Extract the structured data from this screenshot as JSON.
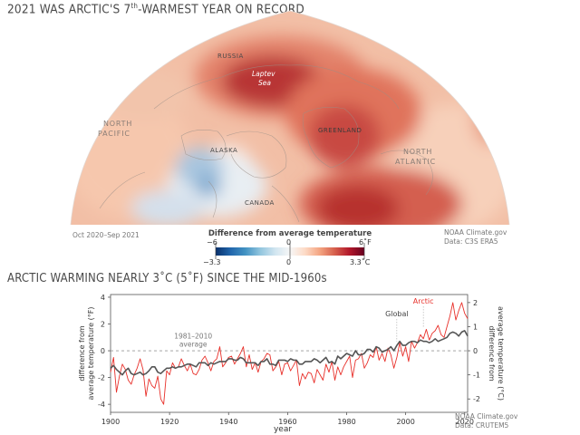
{
  "map": {
    "title": "2021 WAS ARCTIC'S 7",
    "title_sup": "th",
    "title_rest": "-WARMEST YEAR ON RECORD",
    "labels": {
      "russia": "RUSSIA",
      "laptev": "Laptev",
      "sea": "Sea",
      "greenland": "GREENLAND",
      "north_pacific_1": "NORTH",
      "north_pacific_2": "PACIFIC",
      "alaska": "ALASKA",
      "canada": "CANADA",
      "north_atlantic_1": "NORTH",
      "north_atlantic_2": "ATLANTIC"
    },
    "period": "Oct 2020–Sep 2021",
    "credit_1": "NOAA Climate.gov",
    "credit_2": "Data: C3S ERA5"
  },
  "colorbar": {
    "title": "Difference from average temperature",
    "f_min": "−6",
    "f_mid": "0",
    "f_max": "6˚F",
    "c_min": "−3.3",
    "c_mid": "0",
    "c_max": "3.3˚C",
    "colors": [
      "#08306b",
      "#2166ac",
      "#4393c3",
      "#92c5de",
      "#d1e5f0",
      "#f7f7f7",
      "#fddbc7",
      "#f4a582",
      "#d6604d",
      "#b2182b",
      "#67001f"
    ]
  },
  "chart_data": {
    "type": "line",
    "title": "ARCTIC WARMING NEARLY 3˚C (5˚F) SINCE THE MID-1960s",
    "xlabel": "year",
    "ylabel_left": "difference from average temperature (°F)",
    "ylabel_right": "difference from average temperature (°C)",
    "xlim": [
      1900,
      2021
    ],
    "ylim_f": [
      -4.6,
      4.2
    ],
    "x_ticks": [
      1900,
      1920,
      1940,
      1960,
      1980,
      2000,
      2020
    ],
    "y_ticks_f": [
      4,
      2,
      0,
      -2,
      -4
    ],
    "y_ticks_c": [
      2,
      1,
      0,
      -1,
      -2
    ],
    "baseline_label_1": "1981–2010",
    "baseline_label_2": "average",
    "series": [
      {
        "name": "Arctic",
        "color": "#e8302a",
        "x_start": 1900,
        "values_f": [
          -1.6,
          -0.5,
          -3.1,
          -1.9,
          -1.0,
          -1.4,
          -2.2,
          -2.5,
          -1.8,
          -1.3,
          -0.6,
          -1.4,
          -3.4,
          -2.1,
          -2.6,
          -2.8,
          -1.9,
          -3.6,
          -4.0,
          -1.5,
          -1.8,
          -0.9,
          -1.3,
          -1.2,
          -0.6,
          -1.1,
          -1.5,
          -1.0,
          -1.7,
          -1.8,
          -1.4,
          -0.7,
          -0.4,
          -0.9,
          -1.5,
          -0.8,
          -0.6,
          0.3,
          -1.2,
          -0.9,
          -0.5,
          -0.4,
          -1.0,
          -0.6,
          -0.2,
          0.3,
          -1.2,
          -0.3,
          -1.4,
          -0.9,
          -1.6,
          -0.8,
          -0.6,
          -0.2,
          -0.3,
          -1.5,
          -1.2,
          -0.8,
          -1.8,
          -1.0,
          -0.9,
          -1.5,
          -1.1,
          -0.7,
          -2.6,
          -1.7,
          -2.1,
          -1.6,
          -1.7,
          -2.4,
          -1.4,
          -1.8,
          -2.2,
          -1.0,
          -1.6,
          -0.8,
          -2.2,
          -1.2,
          -1.8,
          -1.2,
          -0.8,
          -0.4,
          -2.0,
          -0.7,
          -0.6,
          -0.2,
          -1.3,
          -0.9,
          -0.3,
          -0.5,
          0.3,
          -0.7,
          -0.2,
          -0.8,
          0.2,
          -0.3,
          -1.3,
          -0.5,
          0.6,
          -0.4,
          0.3,
          -0.8,
          0.7,
          0.2,
          0.6,
          1.2,
          0.9,
          1.6,
          0.8,
          1.3,
          1.5,
          1.9,
          1.2,
          1.0,
          1.8,
          2.6,
          3.6,
          2.3,
          3.0,
          3.6,
          2.8,
          2.4
        ]
      },
      {
        "name": "Global",
        "color": "#555555",
        "x_start": 1900,
        "values_f": [
          -1.3,
          -1.1,
          -1.4,
          -1.6,
          -1.8,
          -1.5,
          -1.3,
          -1.7,
          -1.8,
          -1.7,
          -1.6,
          -1.8,
          -1.7,
          -1.5,
          -1.2,
          -1.2,
          -1.6,
          -1.7,
          -1.5,
          -1.3,
          -1.3,
          -1.2,
          -1.3,
          -1.2,
          -1.2,
          -1.1,
          -1.0,
          -1.0,
          -1.1,
          -1.2,
          -0.9,
          -0.9,
          -0.9,
          -1.1,
          -0.9,
          -1.0,
          -0.9,
          -0.8,
          -0.8,
          -0.8,
          -0.6,
          -0.6,
          -0.7,
          -0.7,
          -0.5,
          -0.6,
          -0.9,
          -0.9,
          -0.9,
          -0.9,
          -1.1,
          -0.8,
          -0.8,
          -0.6,
          -1.0,
          -1.0,
          -1.1,
          -0.7,
          -0.7,
          -0.7,
          -0.8,
          -0.6,
          -0.7,
          -0.7,
          -1.0,
          -1.0,
          -0.8,
          -0.8,
          -0.8,
          -0.6,
          -0.7,
          -0.9,
          -0.7,
          -0.5,
          -0.9,
          -0.8,
          -1.0,
          -0.4,
          -0.6,
          -0.4,
          -0.2,
          -0.3,
          -0.4,
          0.0,
          -0.3,
          -0.3,
          -0.2,
          0.1,
          0.1,
          -0.1,
          0.3,
          0.2,
          -0.1,
          0.0,
          0.1,
          0.3,
          0.0,
          0.4,
          0.7,
          0.4,
          0.4,
          0.6,
          0.7,
          0.7,
          0.6,
          0.8,
          0.7,
          0.7,
          0.6,
          0.7,
          0.9,
          0.7,
          0.8,
          0.9,
          1.0,
          1.3,
          1.4,
          1.3,
          1.1,
          1.4,
          1.5,
          1.1
        ]
      }
    ],
    "credit_1": "NOAA Climate.gov",
    "credit_2": "Data: CRUTEM5"
  }
}
